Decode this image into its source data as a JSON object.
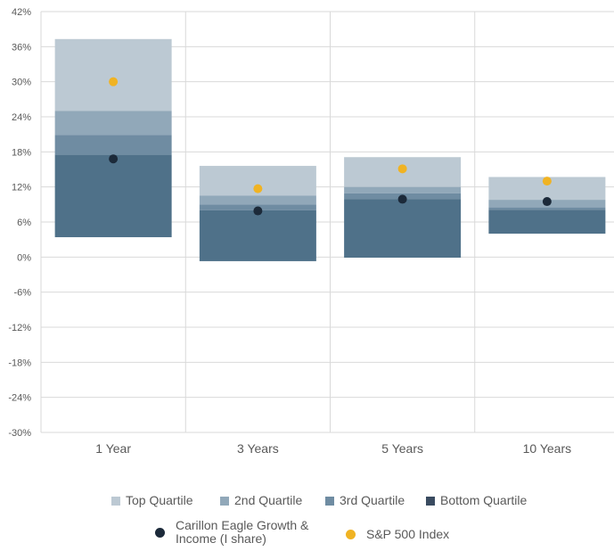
{
  "chart_data": {
    "type": "bar",
    "subtype": "floating-quartile-ranges",
    "categories": [
      "1 Year",
      "3 Years",
      "5 Years",
      "10 Years"
    ],
    "ylim": [
      -30,
      42
    ],
    "yticks": [
      42,
      36,
      30,
      24,
      18,
      12,
      6,
      0,
      -6,
      -12,
      -18,
      -24,
      -30
    ],
    "ytick_suffix": "%",
    "grid": true,
    "quartile_bands": [
      {
        "name": "Top Quartile",
        "color": "#bcc9d3",
        "low": [
          25.0,
          10.5,
          12.0,
          9.8
        ],
        "high": [
          37.3,
          15.6,
          17.1,
          13.7
        ]
      },
      {
        "name": "2nd Quartile",
        "color": "#91a8b9",
        "low": [
          20.9,
          9.0,
          10.9,
          8.5
        ],
        "high": [
          25.0,
          10.5,
          12.0,
          9.8
        ]
      },
      {
        "name": "3rd Quartile",
        "color": "#6f8ca2",
        "low": [
          17.5,
          8.0,
          9.9,
          8.1
        ],
        "high": [
          20.9,
          9.0,
          10.9,
          8.5
        ]
      },
      {
        "name": "Bottom Quartile",
        "color": "#4f7189",
        "low": [
          3.4,
          -0.7,
          -0.1,
          4.0
        ],
        "high": [
          17.5,
          8.0,
          9.9,
          8.1
        ]
      }
    ],
    "series": [
      {
        "name": "Carillon Eagle Growth & Income (I share)",
        "color": "#1c2a3a",
        "values": [
          16.8,
          7.9,
          9.9,
          9.5
        ]
      },
      {
        "name": "S&P 500 Index",
        "color": "#f0b323",
        "values": [
          30.0,
          11.7,
          15.1,
          13.0
        ]
      }
    ],
    "legend_position": "bottom"
  },
  "legend": {
    "top_quartile": "Top Quartile",
    "second_quartile": "2nd Quartile",
    "third_quartile": "3rd Quartile",
    "bottom_quartile": "Bottom Quartile",
    "fund": "Carillon Eagle Growth &\nIncome (I share)",
    "index": "S&P 500 Index"
  }
}
